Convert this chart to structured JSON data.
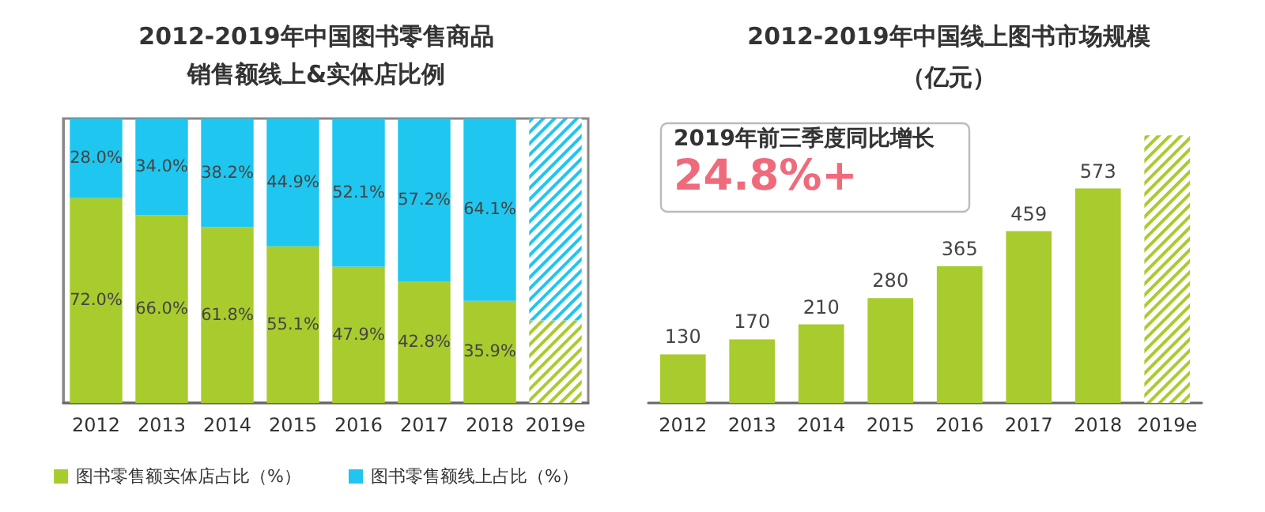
{
  "chart_data": [
    {
      "type": "bar",
      "title": "2012-2019年中国图书零售商品销售额线上&实体店比例",
      "categories": [
        "2012",
        "2013",
        "2014",
        "2015",
        "2016",
        "2017",
        "2018",
        "2019e"
      ],
      "stacked": true,
      "ylim": [
        0,
        100
      ],
      "tick_labels": "x",
      "legend": "bottom",
      "grid": false,
      "series": [
        {
          "name": "图书零售额实体店占比（%）",
          "color": "#a8cb2e",
          "values": [
            72.0,
            66.0,
            61.8,
            55.1,
            47.9,
            42.8,
            35.9,
            29
          ],
          "value_labels": [
            "72.0%",
            "66.0%",
            "61.8%",
            "55.1%",
            "47.9%",
            "42.8%",
            "35.9%",
            null
          ]
        },
        {
          "name": "图书零售额线上占比（%）",
          "color": "#1fc6ef",
          "values": [
            28.0,
            34.0,
            38.2,
            44.9,
            52.1,
            57.2,
            64.1,
            71
          ],
          "value_labels": [
            "28.0%",
            "34.0%",
            "38.2%",
            "44.9%",
            "52.1%",
            "57.2%",
            "64.1%",
            null
          ]
        }
      ]
    },
    {
      "type": "bar",
      "title": "2012-2019年中国线上图书市场规模",
      "subtitle": "（亿元）",
      "categories": [
        "2012",
        "2013",
        "2014",
        "2015",
        "2016",
        "2017",
        "2018",
        "2019e"
      ],
      "ylim": [
        0,
        760
      ],
      "tick_labels": "x",
      "legend": false,
      "grid": false,
      "series": [
        {
          "color": "#a8cb2e",
          "values": [
            130,
            170,
            210,
            280,
            365,
            459,
            573,
            715
          ],
          "value_labels": [
            "130",
            "170",
            "210",
            "280",
            "365",
            "459",
            "573",
            null
          ]
        }
      ],
      "annotations": [
        "2019年前三季度同比增长",
        "24.8%+"
      ]
    }
  ]
}
